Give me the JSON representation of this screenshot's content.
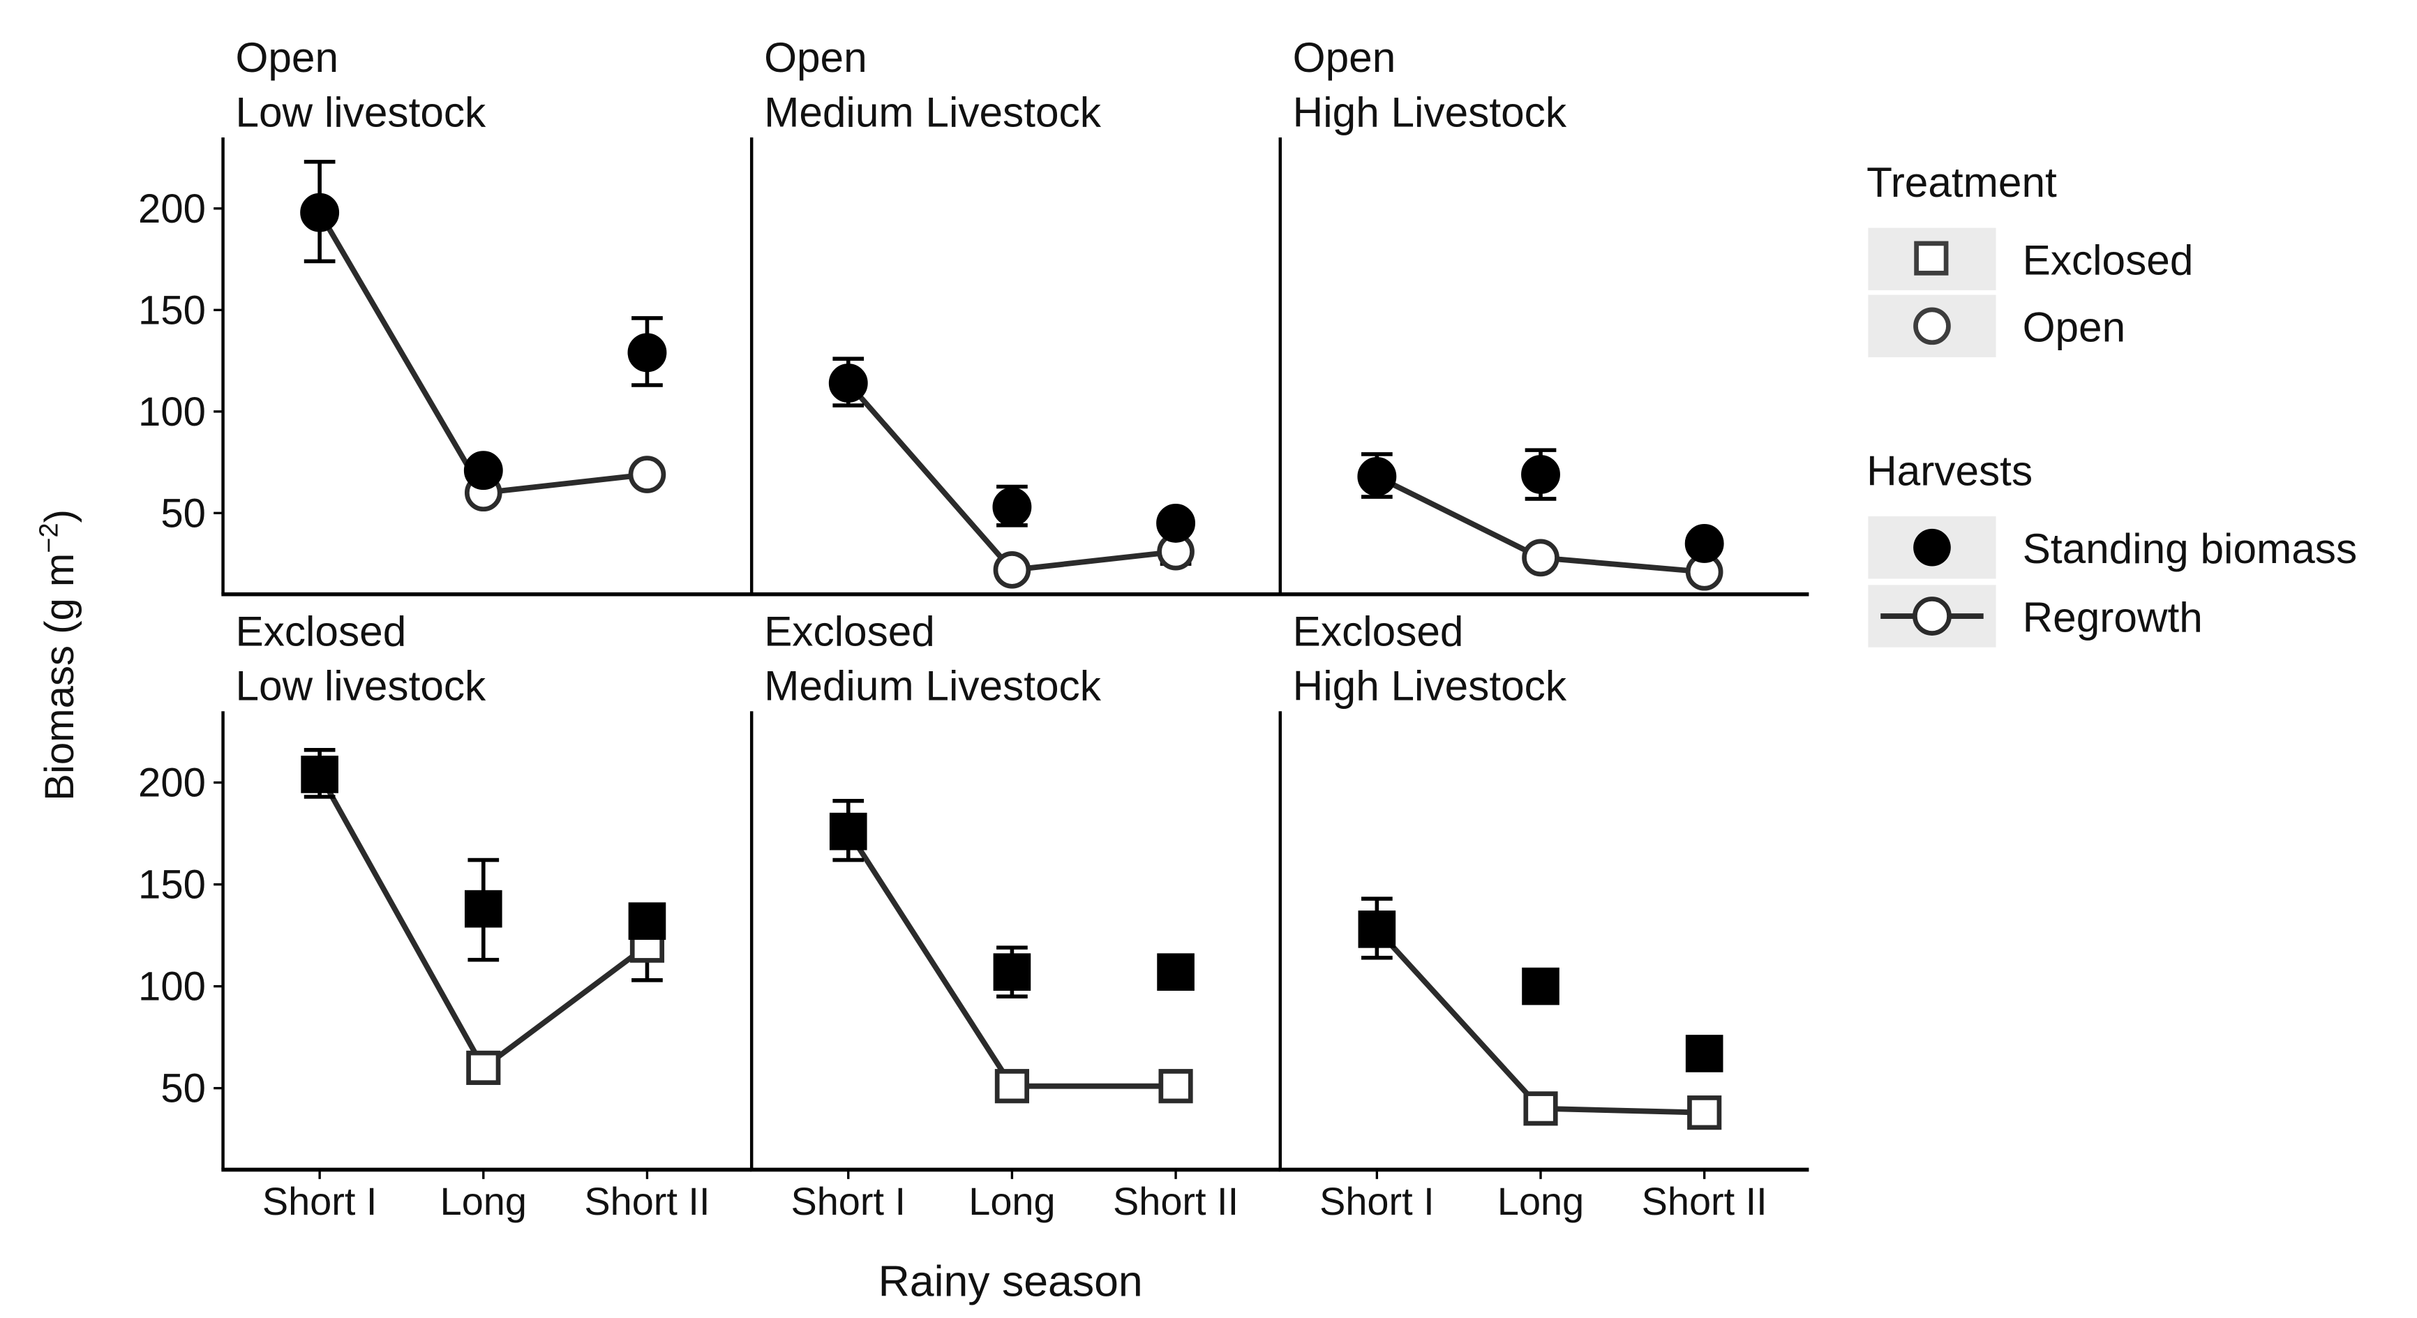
{
  "figure": {
    "xlabel": "Rainy season",
    "ylabel": "Biomass (g m",
    "ylabel_sup": "−2",
    "ylabel_close": ")"
  },
  "chart_data": {
    "type": "scatter",
    "categories": [
      "Short I",
      "Long",
      "Short II"
    ],
    "ylim": [
      10,
      235
    ],
    "yticks": [
      50,
      100,
      150,
      200
    ],
    "grid": false,
    "legend_position": "right",
    "panels": [
      {
        "title_line1": "Open",
        "title_line2": "Low livestock",
        "treatment": "Open",
        "standing": {
          "values": [
            198,
            71,
            129
          ],
          "err_low": [
            174,
            null,
            113
          ],
          "err_high": [
            223,
            null,
            146
          ]
        },
        "regrowth": {
          "values": [
            198,
            60,
            69
          ],
          "err_low": [
            null,
            null,
            null
          ],
          "err_high": [
            null,
            null,
            null
          ]
        }
      },
      {
        "title_line1": "Open",
        "title_line2": "Medium Livestock",
        "treatment": "Open",
        "standing": {
          "values": [
            114,
            53,
            45
          ],
          "err_low": [
            103,
            44,
            null
          ],
          "err_high": [
            126,
            63,
            null
          ]
        },
        "regrowth": {
          "values": [
            114,
            22,
            31
          ],
          "err_low": [
            null,
            null,
            25
          ],
          "err_high": [
            null,
            null,
            null
          ]
        }
      },
      {
        "title_line1": "Open",
        "title_line2": "High Livestock",
        "treatment": "Open",
        "standing": {
          "values": [
            68,
            69,
            35
          ],
          "err_low": [
            58,
            57,
            null
          ],
          "err_high": [
            79,
            81,
            null
          ]
        },
        "regrowth": {
          "values": [
            68,
            28,
            21
          ],
          "err_low": [
            null,
            null,
            null
          ],
          "err_high": [
            null,
            null,
            null
          ]
        }
      },
      {
        "title_line1": "Exclosed",
        "title_line2": "Low livestock",
        "treatment": "Exclosed",
        "standing": {
          "values": [
            204,
            138,
            132
          ],
          "err_low": [
            193,
            113,
            null
          ],
          "err_high": [
            216,
            162,
            null
          ]
        },
        "regrowth": {
          "values": [
            204,
            60,
            120
          ],
          "err_low": [
            null,
            56,
            103
          ],
          "err_high": [
            null,
            null,
            null
          ]
        }
      },
      {
        "title_line1": "Exclosed",
        "title_line2": "Medium Livestock",
        "treatment": "Exclosed",
        "standing": {
          "values": [
            176,
            107,
            107
          ],
          "err_low": [
            162,
            95,
            null
          ],
          "err_high": [
            191,
            119,
            null
          ]
        },
        "regrowth": {
          "values": [
            176,
            51,
            51
          ],
          "err_low": [
            null,
            null,
            null
          ],
          "err_high": [
            null,
            null,
            null
          ]
        }
      },
      {
        "title_line1": "Exclosed",
        "title_line2": "High Livestock",
        "treatment": "Exclosed",
        "standing": {
          "values": [
            128,
            100,
            67
          ],
          "err_low": [
            114,
            null,
            null
          ],
          "err_high": [
            143,
            null,
            null
          ]
        },
        "regrowth": {
          "values": [
            128,
            40,
            38
          ],
          "err_low": [
            null,
            null,
            null
          ],
          "err_high": [
            null,
            null,
            null
          ]
        }
      }
    ],
    "legend": {
      "treatment_title": "Treatment",
      "treatment_items": [
        "Exclosed",
        "Open"
      ],
      "harvest_title": "Harvests",
      "harvest_items": [
        "Standing biomass",
        "Regrowth"
      ]
    }
  },
  "colors": {
    "marker": "#000000",
    "line": "#2b2b2b",
    "legend_key_bg": "#ebebeb",
    "legend_symbol": "#3d3d3d"
  }
}
